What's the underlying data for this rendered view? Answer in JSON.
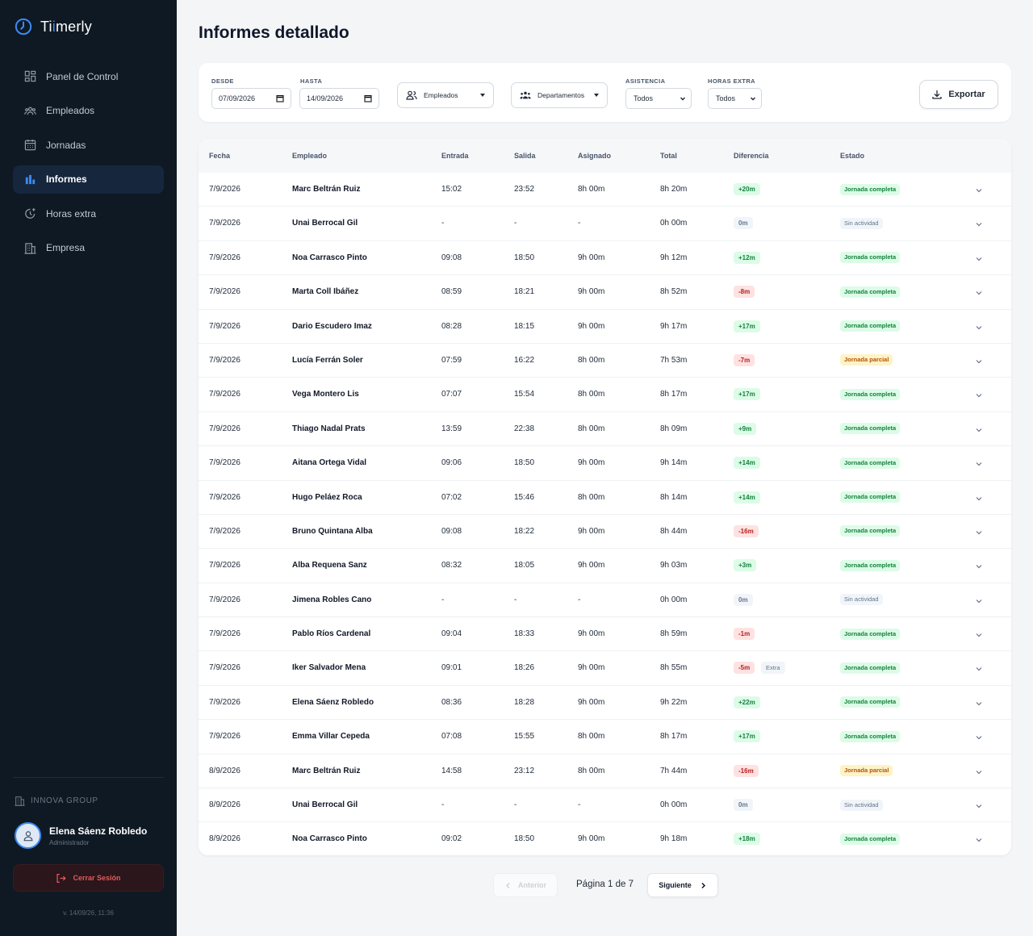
{
  "app": {
    "name_prefix": "Ti",
    "name_highlight": "i",
    "name_suffix": "merly",
    "accent": "#3b8bf5",
    "sidebar_bg": "#0f1923"
  },
  "sidebar": {
    "items": [
      {
        "label": "Panel de Control",
        "icon": "dashboard-icon",
        "active": false
      },
      {
        "label": "Empleados",
        "icon": "users-icon",
        "active": false
      },
      {
        "label": "Jornadas",
        "icon": "calendar-icon",
        "active": false
      },
      {
        "label": "Informes",
        "icon": "bar-chart-icon",
        "active": true
      },
      {
        "label": "Horas extra",
        "icon": "clock-plus-icon",
        "active": false
      },
      {
        "label": "Empresa",
        "icon": "building-icon",
        "active": false
      }
    ],
    "company": "INNOVA GROUP",
    "user": {
      "name": "Elena Sáenz Robledo",
      "role": "Administrador"
    },
    "logout_label": "Cerrar Sesión",
    "version": "v. 14/09/26, 11:36"
  },
  "page": {
    "title": "Informes detallado"
  },
  "filters": {
    "from_label": "DESDE",
    "from_value": "07/09/2026",
    "to_label": "HASTA",
    "to_value": "14/09/2026",
    "employees_label": "Empleados",
    "departments_label": "Departamentos",
    "attendance_label": "ASISTENCIA",
    "attendance_value": "Todos",
    "overtime_label": "HORAS EXTRA",
    "overtime_value": "Todos",
    "export_label": "Exportar"
  },
  "table": {
    "headers": [
      "Fecha",
      "Empleado",
      "Entrada",
      "Salida",
      "Asignado",
      "Total",
      "Diferencia",
      "Estado"
    ],
    "rows": [
      {
        "date": "7/9/2026",
        "employee": "Marc Beltrán Ruiz",
        "in": "15:02",
        "out": "23:52",
        "assigned": "8h 00m",
        "total": "8h 20m",
        "diff": "+20m",
        "diff_kind": "pos",
        "extra": "",
        "status": "Jornada completa",
        "status_kind": "complete"
      },
      {
        "date": "7/9/2026",
        "employee": "Unai Berrocal Gil",
        "in": "-",
        "out": "-",
        "assigned": "-",
        "total": "0h 00m",
        "diff": "0m",
        "diff_kind": "zero",
        "extra": "",
        "status": "Sin actividad",
        "status_kind": "none"
      },
      {
        "date": "7/9/2026",
        "employee": "Noa Carrasco Pinto",
        "in": "09:08",
        "out": "18:50",
        "assigned": "9h 00m",
        "total": "9h 12m",
        "diff": "+12m",
        "diff_kind": "pos",
        "extra": "",
        "status": "Jornada completa",
        "status_kind": "complete"
      },
      {
        "date": "7/9/2026",
        "employee": "Marta Coll Ibáñez",
        "in": "08:59",
        "out": "18:21",
        "assigned": "9h 00m",
        "total": "8h 52m",
        "diff": "-8m",
        "diff_kind": "neg",
        "extra": "",
        "status": "Jornada completa",
        "status_kind": "complete"
      },
      {
        "date": "7/9/2026",
        "employee": "Dario Escudero Imaz",
        "in": "08:28",
        "out": "18:15",
        "assigned": "9h 00m",
        "total": "9h 17m",
        "diff": "+17m",
        "diff_kind": "pos",
        "extra": "",
        "status": "Jornada completa",
        "status_kind": "complete"
      },
      {
        "date": "7/9/2026",
        "employee": "Lucía Ferrán Soler",
        "in": "07:59",
        "out": "16:22",
        "assigned": "8h 00m",
        "total": "7h 53m",
        "diff": "-7m",
        "diff_kind": "neg",
        "extra": "",
        "status": "Jornada parcial",
        "status_kind": "partial"
      },
      {
        "date": "7/9/2026",
        "employee": "Vega Montero Lis",
        "in": "07:07",
        "out": "15:54",
        "assigned": "8h 00m",
        "total": "8h 17m",
        "diff": "+17m",
        "diff_kind": "pos",
        "extra": "",
        "status": "Jornada completa",
        "status_kind": "complete"
      },
      {
        "date": "7/9/2026",
        "employee": "Thiago Nadal Prats",
        "in": "13:59",
        "out": "22:38",
        "assigned": "8h 00m",
        "total": "8h 09m",
        "diff": "+9m",
        "diff_kind": "pos",
        "extra": "",
        "status": "Jornada completa",
        "status_kind": "complete"
      },
      {
        "date": "7/9/2026",
        "employee": "Aitana Ortega Vidal",
        "in": "09:06",
        "out": "18:50",
        "assigned": "9h 00m",
        "total": "9h 14m",
        "diff": "+14m",
        "diff_kind": "pos",
        "extra": "",
        "status": "Jornada completa",
        "status_kind": "complete"
      },
      {
        "date": "7/9/2026",
        "employee": "Hugo Peláez Roca",
        "in": "07:02",
        "out": "15:46",
        "assigned": "8h 00m",
        "total": "8h 14m",
        "diff": "+14m",
        "diff_kind": "pos",
        "extra": "",
        "status": "Jornada completa",
        "status_kind": "complete"
      },
      {
        "date": "7/9/2026",
        "employee": "Bruno Quintana Alba",
        "in": "09:08",
        "out": "18:22",
        "assigned": "9h 00m",
        "total": "8h 44m",
        "diff": "-16m",
        "diff_kind": "neg",
        "extra": "",
        "status": "Jornada completa",
        "status_kind": "complete"
      },
      {
        "date": "7/9/2026",
        "employee": "Alba Requena Sanz",
        "in": "08:32",
        "out": "18:05",
        "assigned": "9h 00m",
        "total": "9h 03m",
        "diff": "+3m",
        "diff_kind": "pos",
        "extra": "",
        "status": "Jornada completa",
        "status_kind": "complete"
      },
      {
        "date": "7/9/2026",
        "employee": "Jimena Robles Cano",
        "in": "-",
        "out": "-",
        "assigned": "-",
        "total": "0h 00m",
        "diff": "0m",
        "diff_kind": "zero",
        "extra": "",
        "status": "Sin actividad",
        "status_kind": "none"
      },
      {
        "date": "7/9/2026",
        "employee": "Pablo Ríos Cardenal",
        "in": "09:04",
        "out": "18:33",
        "assigned": "9h 00m",
        "total": "8h 59m",
        "diff": "-1m",
        "diff_kind": "neg",
        "extra": "",
        "status": "Jornada completa",
        "status_kind": "complete"
      },
      {
        "date": "7/9/2026",
        "employee": "Iker Salvador Mena",
        "in": "09:01",
        "out": "18:26",
        "assigned": "9h 00m",
        "total": "8h 55m",
        "diff": "-5m",
        "diff_kind": "neg",
        "extra": "Extra",
        "status": "Jornada completa",
        "status_kind": "complete"
      },
      {
        "date": "7/9/2026",
        "employee": "Elena Sáenz Robledo",
        "in": "08:36",
        "out": "18:28",
        "assigned": "9h 00m",
        "total": "9h 22m",
        "diff": "+22m",
        "diff_kind": "pos",
        "extra": "",
        "status": "Jornada completa",
        "status_kind": "complete"
      },
      {
        "date": "7/9/2026",
        "employee": "Emma Villar Cepeda",
        "in": "07:08",
        "out": "15:55",
        "assigned": "8h 00m",
        "total": "8h 17m",
        "diff": "+17m",
        "diff_kind": "pos",
        "extra": "",
        "status": "Jornada completa",
        "status_kind": "complete"
      },
      {
        "date": "8/9/2026",
        "employee": "Marc Beltrán Ruiz",
        "in": "14:58",
        "out": "23:12",
        "assigned": "8h 00m",
        "total": "7h 44m",
        "diff": "-16m",
        "diff_kind": "neg",
        "extra": "",
        "status": "Jornada parcial",
        "status_kind": "partial"
      },
      {
        "date": "8/9/2026",
        "employee": "Unai Berrocal Gil",
        "in": "-",
        "out": "-",
        "assigned": "-",
        "total": "0h 00m",
        "diff": "0m",
        "diff_kind": "zero",
        "extra": "",
        "status": "Sin actividad",
        "status_kind": "none"
      },
      {
        "date": "8/9/2026",
        "employee": "Noa Carrasco Pinto",
        "in": "09:02",
        "out": "18:50",
        "assigned": "9h 00m",
        "total": "9h 18m",
        "diff": "+18m",
        "diff_kind": "pos",
        "extra": "",
        "status": "Jornada completa",
        "status_kind": "complete"
      }
    ]
  },
  "pagination": {
    "prev_label": "Anterior",
    "info": "Página 1 de 7",
    "next_label": "Siguiente"
  }
}
